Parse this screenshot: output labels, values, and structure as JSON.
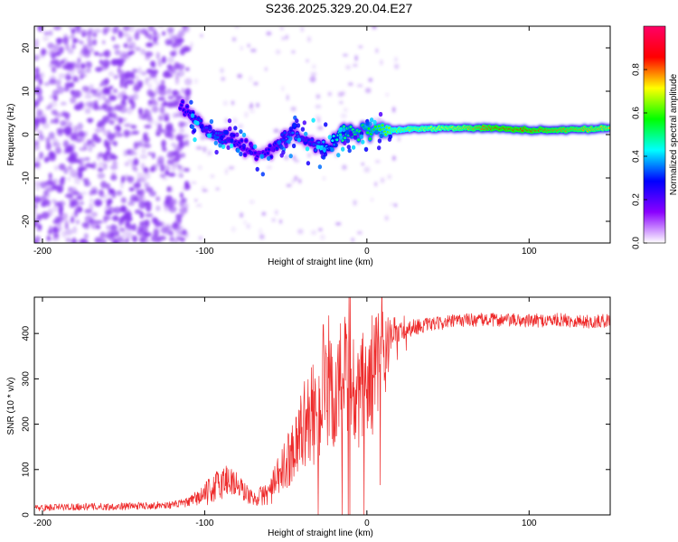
{
  "title": "S236.2025.329.20.04.E27",
  "colors": {
    "snr_line": "#ee2b2b",
    "spectrogram_noise": "#8a3cf0",
    "spectrogram_track_core": "#ff2020"
  },
  "chart_data": [
    {
      "type": "heatmap",
      "name": "spectrogram",
      "xlabel": "Height of straight line (km)",
      "ylabel": "Frequency (Hz)",
      "xlim": [
        -205,
        150
      ],
      "ylim": [
        -25,
        25
      ],
      "xticks": [
        -200,
        -100,
        0,
        100
      ],
      "yticks": [
        -20,
        -10,
        0,
        10,
        20
      ],
      "colorbar": {
        "label": "Normalized spectral amplitude",
        "range": [
          0,
          1
        ],
        "ticks": [
          0.0,
          0.2,
          0.4,
          0.6,
          0.8
        ],
        "stops": [
          "#ffffff",
          "#8a00ff",
          "#0000ff",
          "#00ffff",
          "#00ff00",
          "#ffff00",
          "#ff0000",
          "#ff0066"
        ]
      },
      "track": {
        "x": [
          -115,
          -105,
          -95,
          -85,
          -75,
          -65,
          -55,
          -45,
          -35,
          -25,
          -15,
          0,
          15,
          40,
          60,
          80,
          100,
          120,
          150
        ],
        "freq": [
          7,
          3,
          0,
          -1,
          -3,
          -5,
          -2,
          1,
          -2,
          -3,
          0,
          1,
          1,
          1.5,
          1.5,
          1.5,
          1,
          1,
          1.5
        ],
        "amplitude": [
          0.25,
          0.3,
          0.35,
          0.3,
          0.25,
          0.25,
          0.3,
          0.35,
          0.3,
          0.4,
          0.5,
          0.55,
          0.65,
          0.7,
          0.75,
          0.85,
          0.85,
          0.8,
          0.75
        ]
      }
    },
    {
      "type": "line",
      "name": "snr",
      "xlabel": "Height of straight line (km)",
      "ylabel": "SNR (10 * v/v)",
      "xlim": [
        -205,
        150
      ],
      "ylim": [
        0,
        480
      ],
      "xticks": [
        -200,
        -100,
        0,
        100
      ],
      "yticks": [
        0,
        100,
        200,
        300,
        400
      ],
      "x": [
        -205,
        -180,
        -160,
        -140,
        -120,
        -110,
        -100,
        -90,
        -85,
        -80,
        -70,
        -60,
        -50,
        -45,
        -40,
        -35,
        -30,
        -25,
        -20,
        -15,
        -10,
        -5,
        0,
        5,
        10,
        13,
        15,
        20,
        25,
        30,
        40,
        50,
        60,
        80,
        100,
        120,
        140,
        150
      ],
      "y": [
        15,
        18,
        18,
        20,
        22,
        28,
        45,
        70,
        80,
        65,
        35,
        50,
        110,
        150,
        195,
        215,
        230,
        250,
        260,
        300,
        275,
        245,
        285,
        320,
        355,
        375,
        390,
        405,
        410,
        415,
        420,
        425,
        430,
        430,
        428,
        430,
        425,
        430
      ],
      "noise": [
        8,
        8,
        8,
        8,
        8,
        10,
        25,
        40,
        40,
        30,
        15,
        30,
        60,
        70,
        90,
        110,
        120,
        130,
        140,
        150,
        150,
        140,
        140,
        130,
        120,
        80,
        30,
        25,
        20,
        18,
        15,
        15,
        15,
        15,
        15,
        15,
        15,
        15
      ]
    }
  ]
}
